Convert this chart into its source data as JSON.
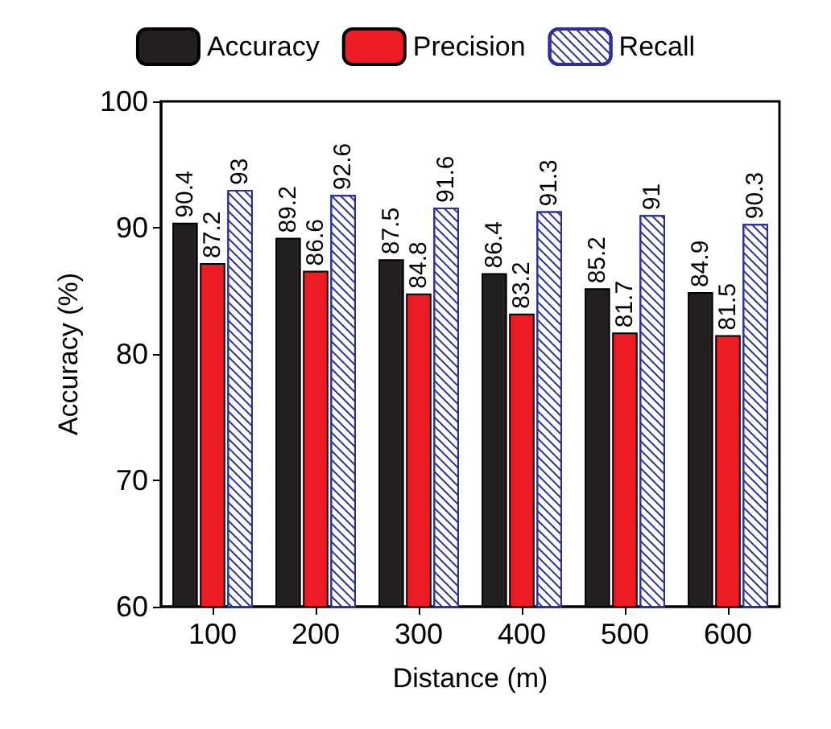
{
  "chart_data": {
    "type": "bar",
    "xlabel": "Distance (m)",
    "ylabel": "Accuracy (%)",
    "categories": [
      "100",
      "200",
      "300",
      "400",
      "500",
      "600"
    ],
    "series": [
      {
        "name": "Accuracy",
        "color": "#231f20",
        "values": [
          90.4,
          89.2,
          87.5,
          86.4,
          85.2,
          84.9
        ]
      },
      {
        "name": "Precision",
        "color": "#ed1c24",
        "values": [
          87.2,
          86.6,
          84.8,
          83.2,
          81.7,
          81.5
        ]
      },
      {
        "name": "Recall",
        "color": "#2e3192",
        "values": [
          93,
          92.6,
          91.6,
          91.3,
          91,
          90.3
        ]
      }
    ],
    "ylim": [
      60,
      100
    ],
    "yticks": [
      60,
      70,
      80,
      90,
      100
    ],
    "data_labels": true,
    "legend": "top",
    "grid": false
  }
}
